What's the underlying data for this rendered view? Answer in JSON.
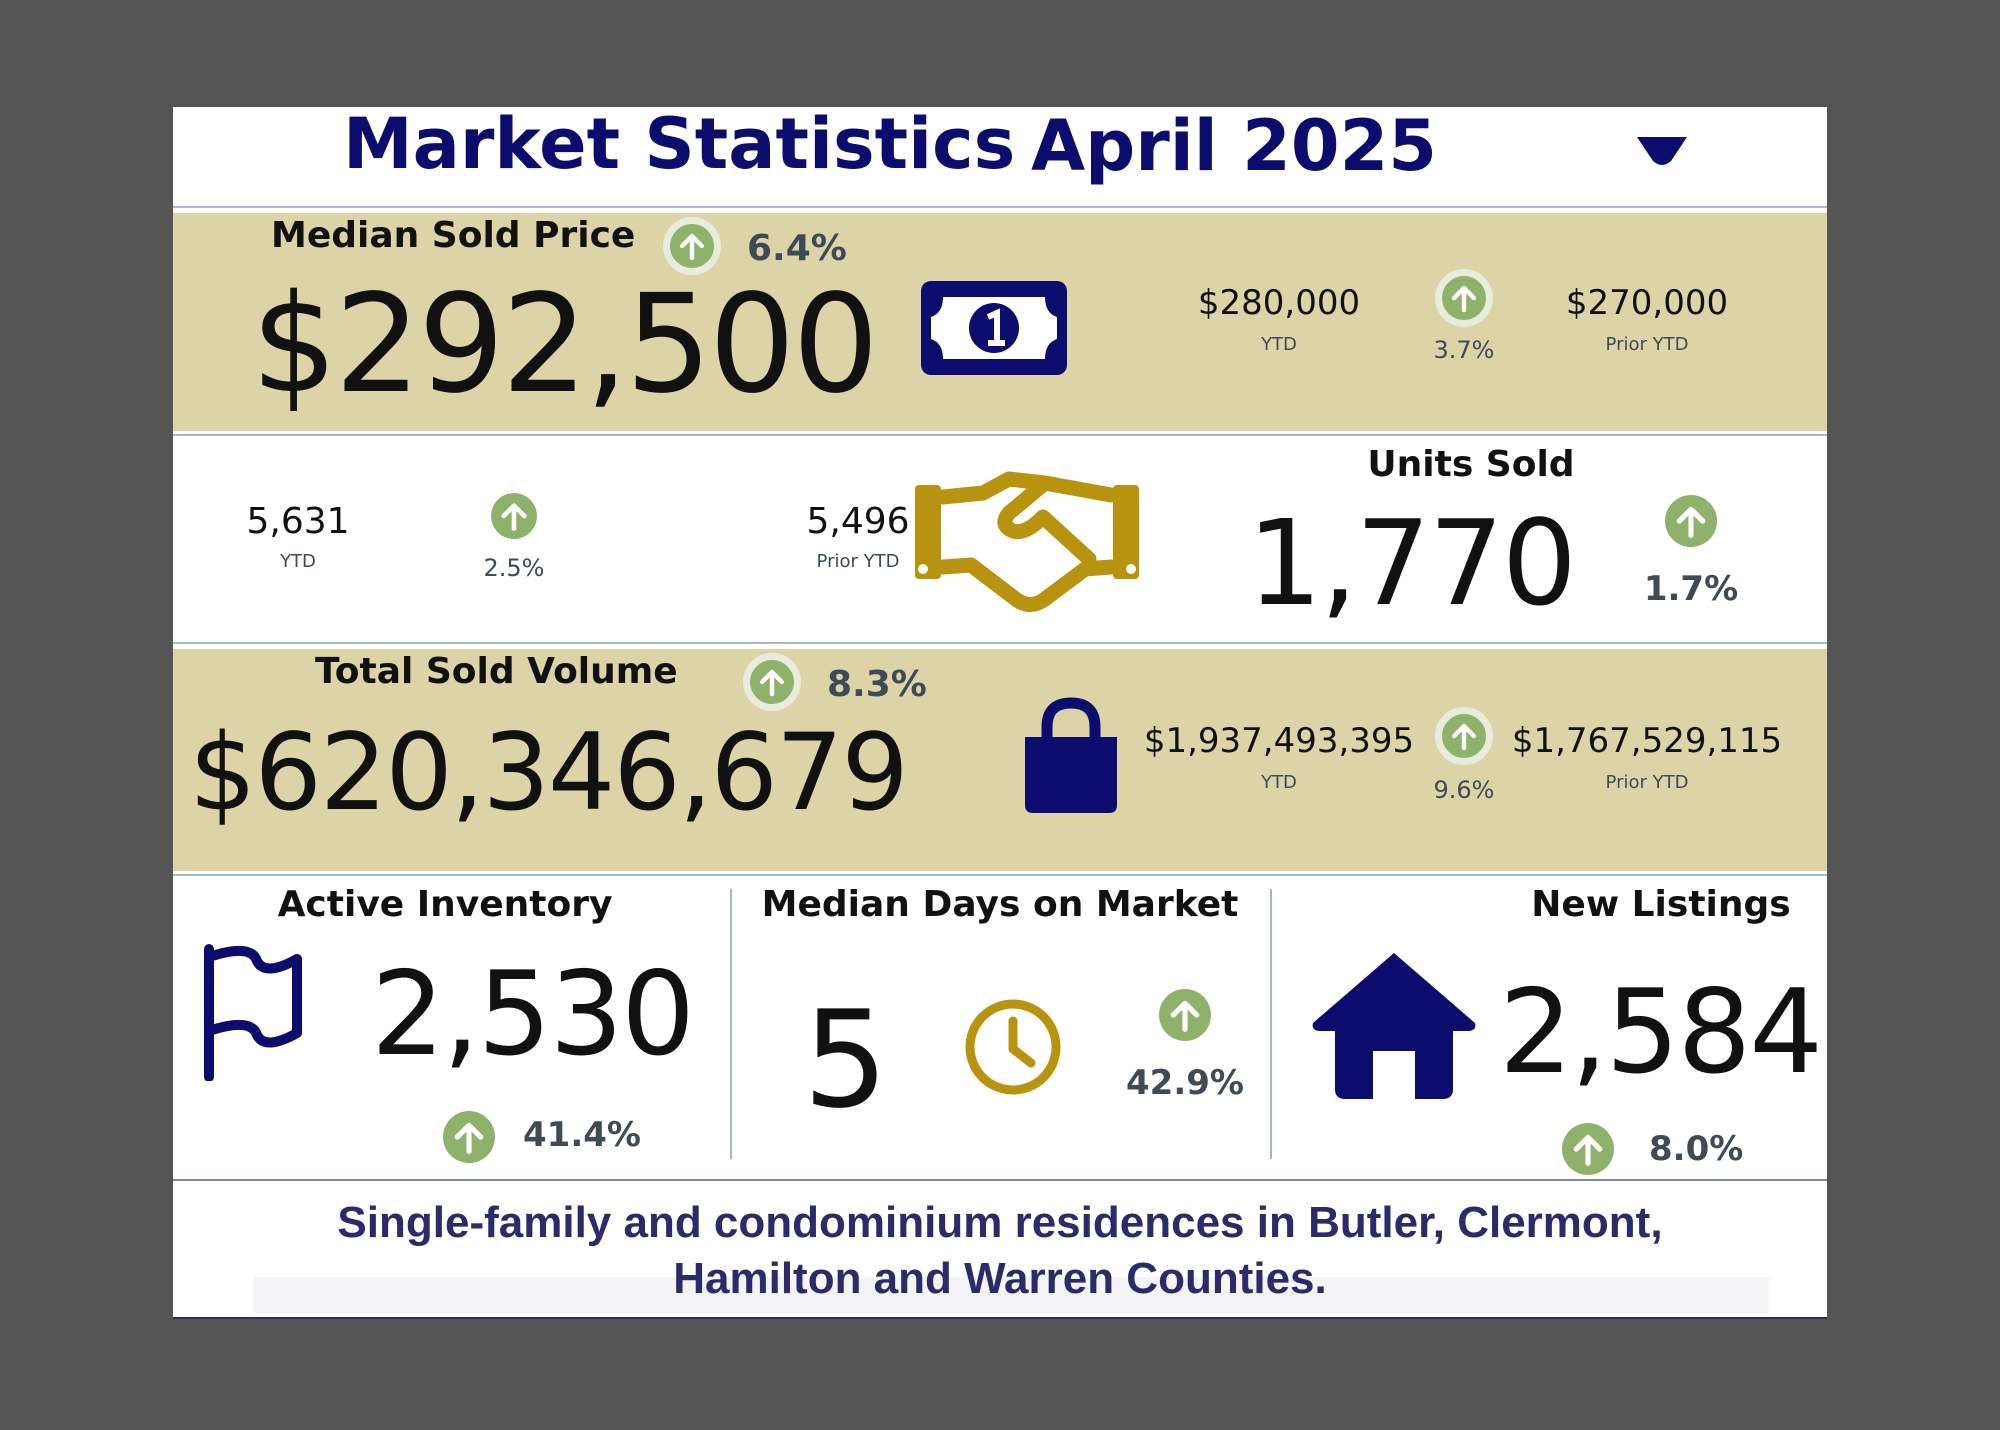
{
  "header": {
    "title": "Market Statistics",
    "period": "April 2025",
    "dropdown_icon": "caret-down-icon"
  },
  "median_sold_price": {
    "label": "Median Sold Price",
    "value": "$292,500",
    "change": "6.4%",
    "icon": "dollar-bill-icon",
    "ytd_value": "$280,000",
    "ytd_label": "YTD",
    "ytd_change": "3.7%",
    "prior_ytd_value": "$270,000",
    "prior_ytd_label": "Prior YTD"
  },
  "units_sold": {
    "label": "Units Sold",
    "value": "1,770",
    "change": "1.7%",
    "icon": "handshake-icon",
    "ytd_value": "5,631",
    "ytd_label": "YTD",
    "ytd_change": "2.5%",
    "prior_ytd_value": "5,496",
    "prior_ytd_label": "Prior YTD"
  },
  "total_sold_volume": {
    "label": "Total Sold Volume",
    "value": "$620,346,679",
    "change": "8.3%",
    "icon": "shopping-bag-icon",
    "ytd_value": "$1,937,493,395",
    "ytd_label": "YTD",
    "ytd_change": "9.6%",
    "prior_ytd_value": "$1,767,529,115",
    "prior_ytd_label": "Prior YTD"
  },
  "active_inventory": {
    "label": "Active Inventory",
    "value": "2,530",
    "change": "41.4%",
    "icon": "flag-icon"
  },
  "median_days_on_market": {
    "label": "Median Days on Market",
    "value": "5",
    "change": "42.9%",
    "icon": "clock-icon"
  },
  "new_listings": {
    "label": "New Listings",
    "value": "2,584",
    "change": "8.0%",
    "icon": "house-icon"
  },
  "footer": {
    "line1": "Single-family and condominium residences in Butler, Clermont,",
    "line2": "Hamilton and Warren Counties."
  },
  "colors": {
    "navy": "#0c0c6e",
    "gold": "#b8930f",
    "tan_band": "#dcd3a7",
    "up_green": "#8fb26a",
    "background": "#545454"
  }
}
